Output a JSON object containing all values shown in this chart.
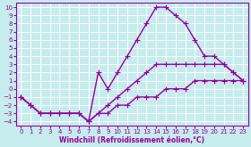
{
  "background_color": "#c6ecee",
  "grid_color": "#ffffff",
  "line_color": "#990099",
  "xlabel": "Windchill (Refroidissement éolien,°C)",
  "xlim": [
    -0.5,
    23.5
  ],
  "ylim": [
    -4.5,
    10.5
  ],
  "xticks": [
    0,
    1,
    2,
    3,
    4,
    5,
    6,
    7,
    8,
    9,
    10,
    11,
    12,
    13,
    14,
    15,
    16,
    17,
    18,
    19,
    20,
    21,
    22,
    23
  ],
  "yticks": [
    -4,
    -3,
    -2,
    -1,
    0,
    1,
    2,
    3,
    4,
    5,
    6,
    7,
    8,
    9,
    10
  ],
  "curve_peak_x": [
    0,
    1,
    2,
    3,
    4,
    5,
    6,
    7,
    8,
    9,
    10,
    11,
    12,
    13,
    14,
    15,
    16,
    17,
    18,
    19,
    20,
    21,
    22,
    23
  ],
  "curve_peak_y": [
    -1,
    -2,
    -3,
    -3,
    -3,
    -3,
    -3,
    -4,
    2,
    0,
    2,
    4,
    6,
    8,
    10,
    10,
    9,
    8,
    6,
    4,
    4,
    3,
    2,
    1
  ],
  "curve_mid_x": [
    0,
    1,
    2,
    3,
    4,
    5,
    6,
    7,
    8,
    9,
    10,
    11,
    12,
    13,
    14,
    15,
    16,
    17,
    18,
    19,
    20,
    21,
    22,
    23
  ],
  "curve_mid_y": [
    -1,
    -2,
    -3,
    -3,
    -3,
    -3,
    -3,
    -4,
    -3,
    -2,
    -1,
    0,
    1,
    2,
    3,
    3,
    3,
    3,
    3,
    3,
    3,
    3,
    2,
    1
  ],
  "curve_low_x": [
    0,
    1,
    2,
    3,
    4,
    5,
    6,
    7,
    8,
    9,
    10,
    11,
    12,
    13,
    14,
    15,
    16,
    17,
    18,
    19,
    20,
    21,
    22,
    23
  ],
  "curve_low_y": [
    -1,
    -2,
    -3,
    -3,
    -3,
    -3,
    -3,
    -4,
    -3,
    -3,
    -2,
    -2,
    -1,
    -1,
    -1,
    0,
    0,
    0,
    1,
    1,
    1,
    1,
    1,
    1
  ],
  "marker": "+",
  "markersize": 4,
  "linewidth": 1.0
}
